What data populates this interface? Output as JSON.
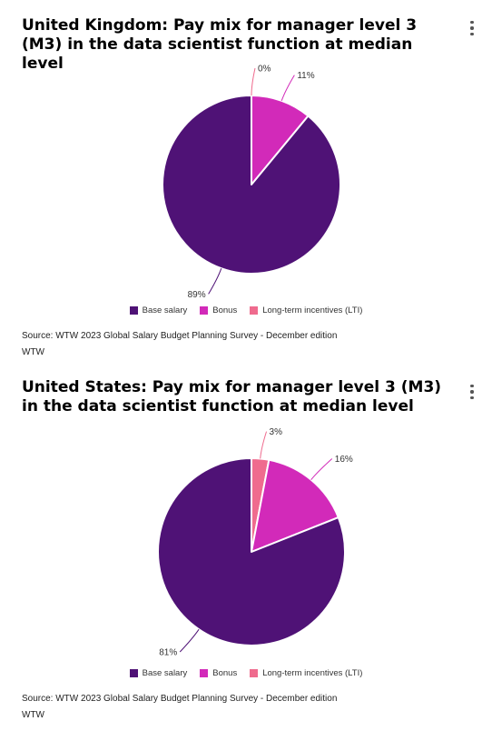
{
  "colors": {
    "base_salary": "#4f1276",
    "bonus": "#d22ab9",
    "lti": "#ef6b8e"
  },
  "menu_icon": "more-vertical-icon",
  "chart_data": [
    {
      "type": "pie",
      "title": "United Kingdom: Pay mix for manager level 3 (M3) in the data scientist function at median level",
      "slices": [
        {
          "name": "Base salary",
          "value": 89,
          "label": "89%",
          "color": "#4f1276"
        },
        {
          "name": "Bonus",
          "value": 11,
          "label": "11%",
          "color": "#d22ab9"
        },
        {
          "name": "Long-term incentives (LTI)",
          "value": 0,
          "label": "0%",
          "color": "#ef6b8e"
        }
      ],
      "legend": [
        "Base salary",
        "Bonus",
        "Long-term incentives (LTI)"
      ],
      "legend_position": "bottom",
      "source": "Source: WTW 2023 Global Salary Budget Planning Survey - December edition",
      "credit": "WTW"
    },
    {
      "type": "pie",
      "title": "United States: Pay mix for manager level 3 (M3) in the data scientist function at median level",
      "slices": [
        {
          "name": "Base salary",
          "value": 81,
          "label": "81%",
          "color": "#4f1276"
        },
        {
          "name": "Bonus",
          "value": 16,
          "label": "16%",
          "color": "#d22ab9"
        },
        {
          "name": "Long-term incentives (LTI)",
          "value": 3,
          "label": "3%",
          "color": "#ef6b8e"
        }
      ],
      "legend": [
        "Base salary",
        "Bonus",
        "Long-term incentives (LTI)"
      ],
      "legend_position": "bottom",
      "source": "Source: WTW 2023 Global Salary Budget Planning Survey - December edition",
      "credit": "WTW"
    }
  ]
}
